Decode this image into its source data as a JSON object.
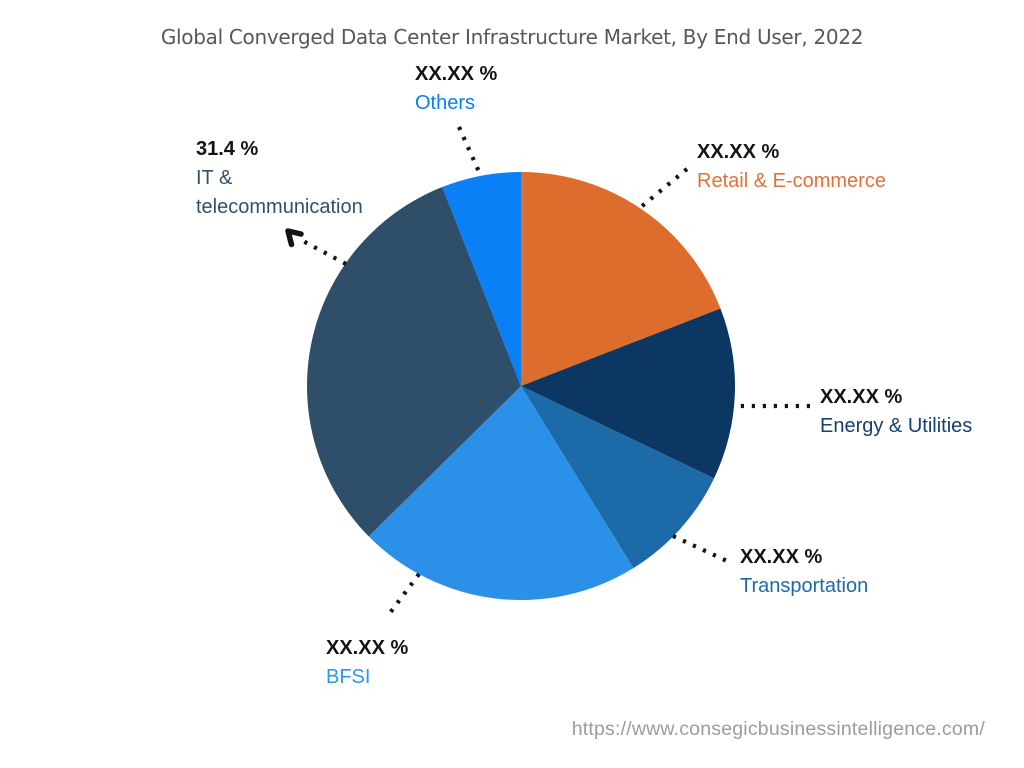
{
  "title": "Global Converged Data Center Infrastructure Market, By End User, 2022",
  "source_url": "https://www.consegicbusinessintelligence.com/",
  "chart_data": {
    "type": "pie",
    "title": "Global Converged Data Center Infrastructure Market, By End User, 2022",
    "unit": "%",
    "start_angle_deg": 0,
    "direction": "clockwise",
    "legend_position": "around-pie-with-dotted-leader-lines",
    "note": "Only the IT & telecommunication share is disclosed (31.4%); all other slice values are masked as XX.XX %. value_pct_est values are estimated from arc angles.",
    "slices": [
      {
        "id": "retail-e-commerce",
        "label": "Retail & E-commerce",
        "display_value": "XX.XX %",
        "value_pct_est": 19.1,
        "color": "#dd6d2d",
        "label_color": "#e0713a"
      },
      {
        "id": "energy-utilities",
        "label": "Energy & Utilities",
        "display_value": "XX.XX %",
        "value_pct_est": 13.0,
        "color": "#0c3763",
        "label_color": "#14416f"
      },
      {
        "id": "transportation",
        "label": "Transportation",
        "display_value": "XX.XX %",
        "value_pct_est": 9.1,
        "color": "#1c6ba8",
        "label_color": "#1c6ba8"
      },
      {
        "id": "bfsi",
        "label": "BFSI",
        "display_value": "XX.XX %",
        "value_pct_est": 21.4,
        "color": "#2b90e8",
        "label_color": "#2d96f0"
      },
      {
        "id": "it-telecommunication",
        "label": "IT & telecommunication",
        "display_value": "31.4 %",
        "value_pct_est": 31.4,
        "color": "#2f4e69",
        "label_color": "#33506b"
      },
      {
        "id": "others",
        "label": "Others",
        "display_value": "XX.XX %",
        "value_pct_est": 6.0,
        "color": "#0a80f7",
        "label_color": "#0a80f7"
      }
    ]
  }
}
